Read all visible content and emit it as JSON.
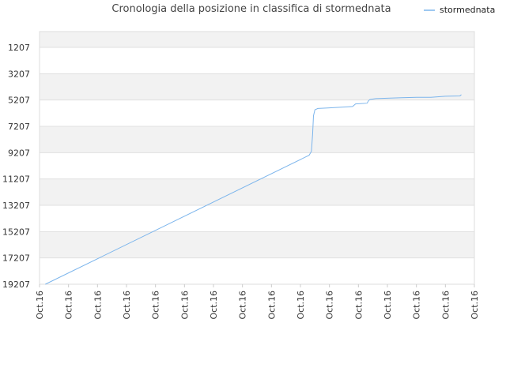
{
  "chart_data": {
    "type": "line",
    "title": "Cronologia della posizione in classifica di stormednata",
    "xlabel": "",
    "ylabel": "",
    "y_reversed": true,
    "ylim": [
      1207,
      19207
    ],
    "yticks": [
      1207,
      3207,
      5207,
      7207,
      9207,
      11207,
      13207,
      15207,
      17207,
      19207
    ],
    "xticks": [
      "Oct.16",
      "Oct.16",
      "Oct.16",
      "Oct.16",
      "Oct.16",
      "Oct.16",
      "Oct.16",
      "Oct.16",
      "Oct.16",
      "Oct.16",
      "Oct.16",
      "Oct.16",
      "Oct.16",
      "Oct.16",
      "Oct.16",
      "Oct.16"
    ],
    "xlim": [
      0,
      15
    ],
    "grid": true,
    "legend_position": "top-right",
    "series": [
      {
        "name": "stormednata",
        "color": "#7cb5ec",
        "x": [
          0.2,
          9.3,
          9.38,
          9.42,
          9.45,
          9.5,
          9.6,
          10.0,
          10.8,
          10.9,
          11.3,
          11.35,
          11.4,
          11.6,
          12.0,
          12.5,
          13.0,
          13.5,
          14.0,
          14.5,
          14.55
        ],
        "y": [
          19207,
          9400,
          9100,
          7800,
          6400,
          5950,
          5850,
          5800,
          5700,
          5500,
          5450,
          5250,
          5170,
          5100,
          5070,
          5030,
          5000,
          5000,
          4920,
          4900,
          4800
        ]
      }
    ]
  }
}
